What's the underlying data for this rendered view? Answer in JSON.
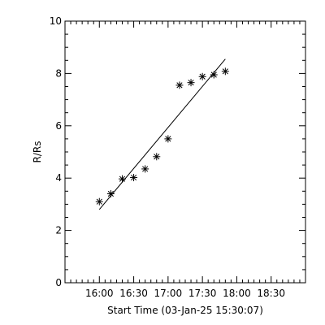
{
  "chart_data": {
    "type": "scatter",
    "xlabel": "Start Time (03-Jan-25 15:30:07)",
    "ylabel": "R/Rs",
    "x_tick_labels": [
      "16:00",
      "16:30",
      "17:00",
      "17:30",
      "18:00",
      "18:30"
    ],
    "x_tick_minutes": [
      30,
      60,
      90,
      120,
      150,
      180
    ],
    "xlim_minutes": [
      0,
      210
    ],
    "y_tick_labels": [
      "0",
      "2",
      "4",
      "6",
      "8",
      "10"
    ],
    "y_tick_values": [
      0,
      2,
      4,
      6,
      8,
      10
    ],
    "ylim": [
      0,
      10
    ],
    "grid": false,
    "marker": "asterisk",
    "series": [
      {
        "points": [
          {
            "t": 30,
            "r": 3.1
          },
          {
            "t": 40,
            "r": 3.4
          },
          {
            "t": 50,
            "r": 3.97
          },
          {
            "t": 60,
            "r": 4.02
          },
          {
            "t": 70,
            "r": 4.35
          },
          {
            "t": 80,
            "r": 4.82
          },
          {
            "t": 90,
            "r": 5.5
          },
          {
            "t": 100,
            "r": 7.55
          },
          {
            "t": 110,
            "r": 7.65
          },
          {
            "t": 120,
            "r": 7.88
          },
          {
            "t": 130,
            "r": 7.95
          },
          {
            "t": 140,
            "r": 8.08
          }
        ]
      }
    ],
    "fit_line": {
      "start": {
        "t": 30,
        "r": 2.8
      },
      "end": {
        "t": 140,
        "r": 8.55
      }
    }
  }
}
